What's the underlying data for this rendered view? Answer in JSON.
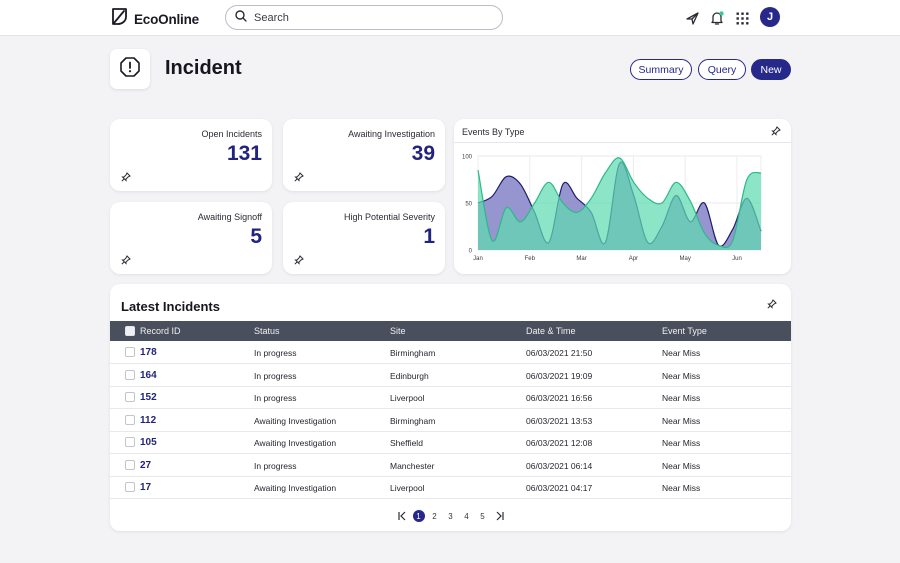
{
  "app": {
    "brand": "EcoOnline"
  },
  "search": {
    "placeholder": "Search"
  },
  "user": {
    "initial": "J"
  },
  "page": {
    "title": "Incident"
  },
  "actions": {
    "summary": "Summary",
    "query": "Query",
    "new": "New"
  },
  "stats": [
    {
      "label": "Open Incidents",
      "value": "131"
    },
    {
      "label": "Awaiting Investigation",
      "value": "39"
    },
    {
      "label": "Awaiting Signoff",
      "value": "5"
    },
    {
      "label": "High Potential Severity",
      "value": "1"
    }
  ],
  "colors": {
    "accent": "#26288a",
    "area_green": "#5edbb0",
    "area_purple": "#8583c8",
    "overlap": "#3fa799"
  },
  "chart_data": {
    "type": "area",
    "title": "Events By Type",
    "x": [
      "Jan",
      "Feb",
      "Mar",
      "Apr",
      "May",
      "Jun"
    ],
    "xlabel": "",
    "ylabel": "",
    "ylim": [
      0,
      100
    ],
    "yticks": [
      0,
      50,
      100
    ],
    "grid": true,
    "series": [
      {
        "samples": [
          50,
          57,
          78,
          70,
          40,
          8,
          70,
          55,
          40,
          8,
          92,
          58,
          8,
          25,
          58,
          30,
          50,
          5,
          22,
          55,
          20
        ]
      },
      {
        "samples": [
          85,
          10,
          45,
          30,
          50,
          72,
          50,
          40,
          55,
          82,
          98,
          72,
          55,
          50,
          72,
          52,
          18,
          5,
          10,
          75,
          82
        ]
      }
    ]
  },
  "table": {
    "title": "Latest Incidents",
    "columns": [
      "Record ID",
      "Status",
      "Site",
      "Date & Time",
      "Event Type"
    ],
    "rows": [
      [
        "178",
        "In progress",
        "Birmingham",
        "06/03/2021 21:50",
        "Near Miss"
      ],
      [
        "164",
        "In progress",
        "Edinburgh",
        "06/03/2021 19:09",
        "Near Miss"
      ],
      [
        "152",
        "In progress",
        "Liverpool",
        "06/03/2021 16:56",
        "Near Miss"
      ],
      [
        "112",
        "Awaiting Investigation",
        "Birmingham",
        "06/03/2021 13:53",
        "Near Miss"
      ],
      [
        "105",
        "Awaiting Investigation",
        "Sheffield",
        "06/03/2021 12:08",
        "Near Miss"
      ],
      [
        "27",
        "In progress",
        "Manchester",
        "06/03/2021 06:14",
        "Near Miss"
      ],
      [
        "17",
        "Awaiting Investigation",
        "Liverpool",
        "06/03/2021 04:17",
        "Near Miss"
      ]
    ]
  },
  "pagination": {
    "pages": [
      "1",
      "2",
      "3",
      "4",
      "5"
    ],
    "current": "1"
  }
}
